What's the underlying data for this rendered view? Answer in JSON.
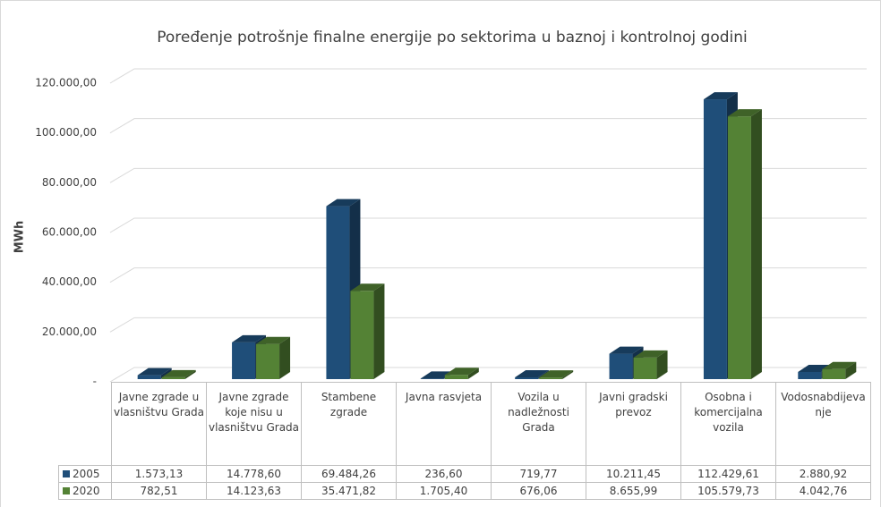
{
  "chart_data": {
    "type": "bar3d",
    "title": "Poređenje potrošnje finalne energije po sektorima u baznoj i kontrolnoj godini",
    "ylabel": "MWh",
    "categories": [
      "Javne zgrade u vlasništvu Grada",
      "Javne zgrade koje nisu u vlasništvu Grada",
      "Stambene zgrade",
      "Javna rasvjeta",
      "Vozila u nadležnosti Grada",
      "Javni gradski prevoz",
      "Osobna i komercijalna vozila",
      "Vodosnabdijevanje"
    ],
    "series": [
      {
        "name": "2005",
        "color": "#1f4e79",
        "values": [
          1573.13,
          14778.6,
          69484.26,
          236.6,
          719.77,
          10211.45,
          112429.61,
          2880.92
        ],
        "value_labels": [
          "1.573,13",
          "14.778,60",
          "69.484,26",
          "236,60",
          "719,77",
          "10.211,45",
          "112.429,61",
          "2.880,92"
        ]
      },
      {
        "name": "2020",
        "color": "#548235",
        "values": [
          782.51,
          14123.63,
          35471.82,
          1705.4,
          676.06,
          8655.99,
          105579.73,
          4042.76
        ],
        "value_labels": [
          "782,51",
          "14.123,63",
          "35.471,82",
          "1.705,40",
          "676,06",
          "8.655,99",
          "105.579,73",
          "4.042,76"
        ]
      }
    ],
    "ylim": [
      0,
      120000
    ],
    "yticks": [
      {
        "value": 0,
        "label": "-"
      },
      {
        "value": 20000,
        "label": "20.000,00"
      },
      {
        "value": 40000,
        "label": "40.000,00"
      },
      {
        "value": 60000,
        "label": "60.000,00"
      },
      {
        "value": 80000,
        "label": "80.000,00"
      },
      {
        "value": 100000,
        "label": "100.000,00"
      },
      {
        "value": 120000,
        "label": "120.000,00"
      }
    ],
    "grid": true
  }
}
